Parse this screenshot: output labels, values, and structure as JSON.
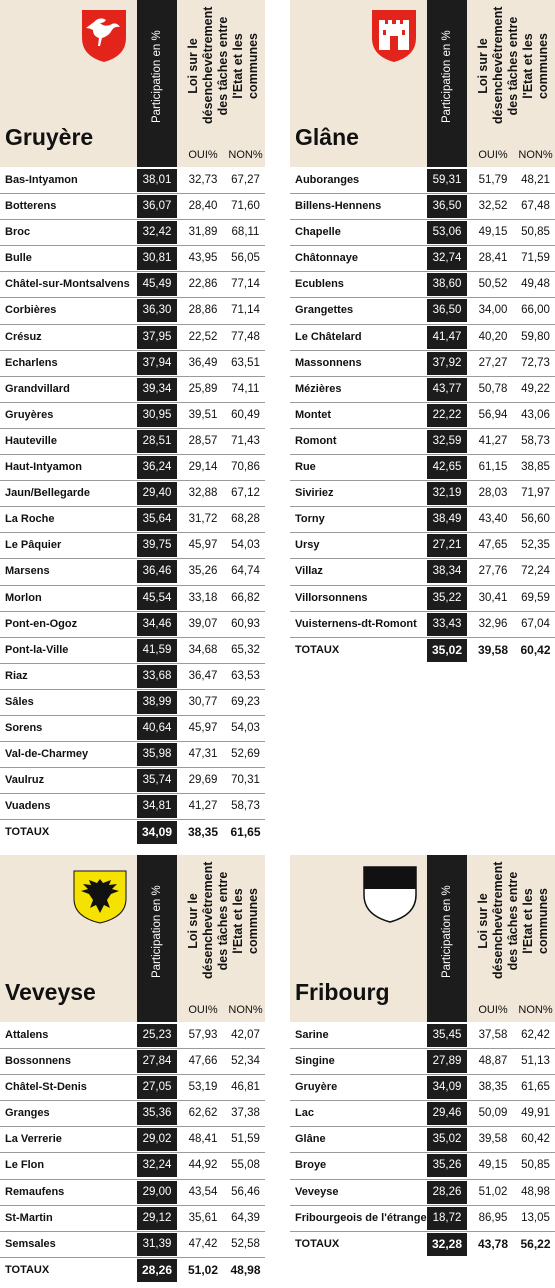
{
  "headers": {
    "participation": "Participation en %",
    "law": "Loi sur le désenchevêtrement des tâches entre l'Etat et les communes",
    "oui": "OUI%",
    "non": "NON%"
  },
  "panels": [
    {
      "district": "Gruyère",
      "crest": "gruyere-crane-crest",
      "rows": [
        {
          "name": "Bas-Intyamon",
          "part": "38,01",
          "oui": "32,73",
          "non": "67,27"
        },
        {
          "name": "Botterens",
          "part": "36,07",
          "oui": "28,40",
          "non": "71,60"
        },
        {
          "name": "Broc",
          "part": "32,42",
          "oui": "31,89",
          "non": "68,11"
        },
        {
          "name": "Bulle",
          "part": "30,81",
          "oui": "43,95",
          "non": "56,05"
        },
        {
          "name": "Châtel-sur-Montsalvens",
          "part": "45,49",
          "oui": "22,86",
          "non": "77,14"
        },
        {
          "name": "Corbières",
          "part": "36,30",
          "oui": "28,86",
          "non": "71,14"
        },
        {
          "name": "Crésuz",
          "part": "37,95",
          "oui": "22,52",
          "non": "77,48"
        },
        {
          "name": "Echarlens",
          "part": "37,94",
          "oui": "36,49",
          "non": "63,51"
        },
        {
          "name": "Grandvillard",
          "part": "39,34",
          "oui": "25,89",
          "non": "74,11"
        },
        {
          "name": "Gruyères",
          "part": "30,95",
          "oui": "39,51",
          "non": "60,49"
        },
        {
          "name": "Hauteville",
          "part": "28,51",
          "oui": "28,57",
          "non": "71,43"
        },
        {
          "name": "Haut-Intyamon",
          "part": "36,24",
          "oui": "29,14",
          "non": "70,86"
        },
        {
          "name": "Jaun/Bellegarde",
          "part": "29,40",
          "oui": "32,88",
          "non": "67,12"
        },
        {
          "name": "La Roche",
          "part": "35,64",
          "oui": "31,72",
          "non": "68,28"
        },
        {
          "name": "Le Pâquier",
          "part": "39,75",
          "oui": "45,97",
          "non": "54,03"
        },
        {
          "name": "Marsens",
          "part": "36,46",
          "oui": "35,26",
          "non": "64,74"
        },
        {
          "name": "Morlon",
          "part": "45,54",
          "oui": "33,18",
          "non": "66,82"
        },
        {
          "name": "Pont-en-Ogoz",
          "part": "34,46",
          "oui": "39,07",
          "non": "60,93"
        },
        {
          "name": "Pont-la-Ville",
          "part": "41,59",
          "oui": "34,68",
          "non": "65,32"
        },
        {
          "name": "Riaz",
          "part": "33,68",
          "oui": "36,47",
          "non": "63,53"
        },
        {
          "name": "Sâles",
          "part": "38,99",
          "oui": "30,77",
          "non": "69,23"
        },
        {
          "name": "Sorens",
          "part": "40,64",
          "oui": "45,97",
          "non": "54,03"
        },
        {
          "name": "Val-de-Charmey",
          "part": "35,98",
          "oui": "47,31",
          "non": "52,69"
        },
        {
          "name": "Vaulruz",
          "part": "35,74",
          "oui": "29,69",
          "non": "70,31"
        },
        {
          "name": "Vuadens",
          "part": "34,81",
          "oui": "41,27",
          "non": "58,73"
        },
        {
          "name": "TOTAUX",
          "part": "34,09",
          "oui": "38,35",
          "non": "61,65",
          "total": true
        }
      ]
    },
    {
      "district": "Glâne",
      "crest": "glane-castle-crest",
      "rows": [
        {
          "name": "Auboranges",
          "part": "59,31",
          "oui": "51,79",
          "non": "48,21"
        },
        {
          "name": "Billens-Hennens",
          "part": "36,50",
          "oui": "32,52",
          "non": "67,48"
        },
        {
          "name": "Chapelle",
          "part": "53,06",
          "oui": "49,15",
          "non": "50,85"
        },
        {
          "name": "Châtonnaye",
          "part": "32,74",
          "oui": "28,41",
          "non": "71,59"
        },
        {
          "name": "Ecublens",
          "part": "38,60",
          "oui": "50,52",
          "non": "49,48"
        },
        {
          "name": "Grangettes",
          "part": "36,50",
          "oui": "34,00",
          "non": "66,00"
        },
        {
          "name": "Le Châtelard",
          "part": "41,47",
          "oui": "40,20",
          "non": "59,80"
        },
        {
          "name": "Massonnens",
          "part": "37,92",
          "oui": "27,27",
          "non": "72,73"
        },
        {
          "name": "Mézières",
          "part": "43,77",
          "oui": "50,78",
          "non": "49,22"
        },
        {
          "name": "Montet",
          "part": "22,22",
          "oui": "56,94",
          "non": "43,06"
        },
        {
          "name": "Romont",
          "part": "32,59",
          "oui": "41,27",
          "non": "58,73"
        },
        {
          "name": "Rue",
          "part": "42,65",
          "oui": "61,15",
          "non": "38,85"
        },
        {
          "name": "Siviriez",
          "part": "32,19",
          "oui": "28,03",
          "non": "71,97"
        },
        {
          "name": "Torny",
          "part": "38,49",
          "oui": "43,40",
          "non": "56,60"
        },
        {
          "name": "Ursy",
          "part": "27,21",
          "oui": "47,65",
          "non": "52,35"
        },
        {
          "name": "Villaz",
          "part": "38,34",
          "oui": "27,76",
          "non": "72,24"
        },
        {
          "name": "Villorsonnens",
          "part": "35,22",
          "oui": "30,41",
          "non": "69,59"
        },
        {
          "name": "Vuisternens-dt-Romont",
          "part": "33,43",
          "oui": "32,96",
          "non": "67,04"
        },
        {
          "name": "TOTAUX",
          "part": "35,02",
          "oui": "39,58",
          "non": "60,42",
          "total": true
        }
      ]
    },
    {
      "district": "Veveyse",
      "crest": "veveyse-eagle-crest",
      "rows": [
        {
          "name": "Attalens",
          "part": "25,23",
          "oui": "57,93",
          "non": "42,07"
        },
        {
          "name": "Bossonnens",
          "part": "27,84",
          "oui": "47,66",
          "non": "52,34"
        },
        {
          "name": "Châtel-St-Denis",
          "part": "27,05",
          "oui": "53,19",
          "non": "46,81"
        },
        {
          "name": "Granges",
          "part": "35,36",
          "oui": "62,62",
          "non": "37,38"
        },
        {
          "name": "La Verrerie",
          "part": "29,02",
          "oui": "48,41",
          "non": "51,59"
        },
        {
          "name": "Le Flon",
          "part": "32,24",
          "oui": "44,92",
          "non": "55,08"
        },
        {
          "name": "Remaufens",
          "part": "29,00",
          "oui": "43,54",
          "non": "56,46"
        },
        {
          "name": "St-Martin",
          "part": "29,12",
          "oui": "35,61",
          "non": "64,39"
        },
        {
          "name": "Semsales",
          "part": "31,39",
          "oui": "47,42",
          "non": "52,58"
        },
        {
          "name": "TOTAUX",
          "part": "28,26",
          "oui": "51,02",
          "non": "48,98",
          "total": true
        }
      ]
    },
    {
      "district": "Fribourg",
      "crest": "fribourg-canton-crest",
      "rows": [
        {
          "name": "Sarine",
          "part": "35,45",
          "oui": "37,58",
          "non": "62,42"
        },
        {
          "name": "Singine",
          "part": "27,89",
          "oui": "48,87",
          "non": "51,13"
        },
        {
          "name": "Gruyère",
          "part": "34,09",
          "oui": "38,35",
          "non": "61,65"
        },
        {
          "name": "Lac",
          "part": "29,46",
          "oui": "50,09",
          "non": "49,91"
        },
        {
          "name": "Glâne",
          "part": "35,02",
          "oui": "39,58",
          "non": "60,42"
        },
        {
          "name": "Broye",
          "part": "35,26",
          "oui": "49,15",
          "non": "50,85"
        },
        {
          "name": "Veveyse",
          "part": "28,26",
          "oui": "51,02",
          "non": "48,98"
        },
        {
          "name": "Fribourgeois de l'étranger",
          "part": "18,72",
          "oui": "86,95",
          "non": "13,05"
        },
        {
          "name": "TOTAUX",
          "part": "32,28",
          "oui": "43,78",
          "non": "56,22",
          "total": true
        }
      ]
    }
  ]
}
